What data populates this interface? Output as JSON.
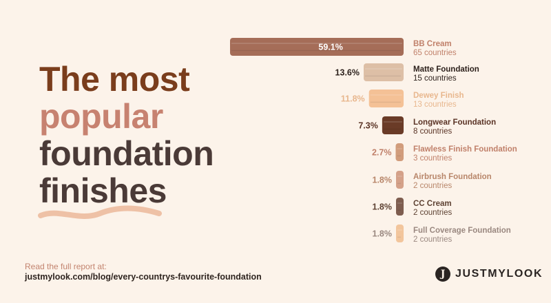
{
  "title": {
    "line1": "The most",
    "line2": "popular",
    "line3": "foundation",
    "line4": "finishes",
    "colors": {
      "line1": "#7a3d1c",
      "line2": "#c78270",
      "line3": "#4a3a37",
      "line4": "#4a3a37"
    }
  },
  "footer": {
    "label": "Read the full report at:",
    "url": "justmylook.com/blog/every-countrys-favourite-foundation"
  },
  "brand": {
    "name": "JUSTMYLOOK",
    "icon": "j-logo-icon"
  },
  "chart_data": {
    "type": "bar",
    "orientation": "horizontal",
    "value_unit": "%",
    "categories": [
      "BB Cream",
      "Matte Foundation",
      "Dewey Finish",
      "Longwear Foundation",
      "Flawless Finish Foundation",
      "Airbrush Foundation",
      "CC Cream",
      "Full Coverage Foundation"
    ],
    "values": [
      59.1,
      13.6,
      11.8,
      7.3,
      2.7,
      1.8,
      1.8,
      1.8
    ],
    "value_labels": [
      "59.1%",
      "13.6%",
      "11.8%",
      "7.3%",
      "2.7%",
      "1.8%",
      "1.8%",
      "1.8%"
    ],
    "countries_labels": [
      "65 countries",
      "15 countries",
      "13 countries",
      "8 countries",
      "3 countries",
      "2 countries",
      "2 countries",
      "2 countries"
    ],
    "bar_colors": [
      "#a56d58",
      "#ddbfa6",
      "#f4c196",
      "#6a3b27",
      "#d19c7b",
      "#d4a189",
      "#7e5d4f",
      "#f2c59c"
    ],
    "label_colors": [
      "#c0806a",
      "#2d211c",
      "#e8b78e",
      "#5a3325",
      "#c0806a",
      "#b8866a",
      "#5e4233",
      "#9a8880"
    ],
    "countries_colors": [
      "#c0806a",
      "#2d211c",
      "#e8b78e",
      "#5a3325",
      "#c0806a",
      "#b8866a",
      "#5e4233",
      "#9a8880"
    ],
    "value_label_colors": [
      "#ffffff",
      "#2d211c",
      "#e8b78e",
      "#5a3325",
      "#c0806a",
      "#b8866a",
      "#5e4233",
      "#9a8880"
    ],
    "xlim": [
      0,
      59.1
    ],
    "bar_style": "brush strokes, right-aligned",
    "grid": false,
    "legend": "none"
  }
}
